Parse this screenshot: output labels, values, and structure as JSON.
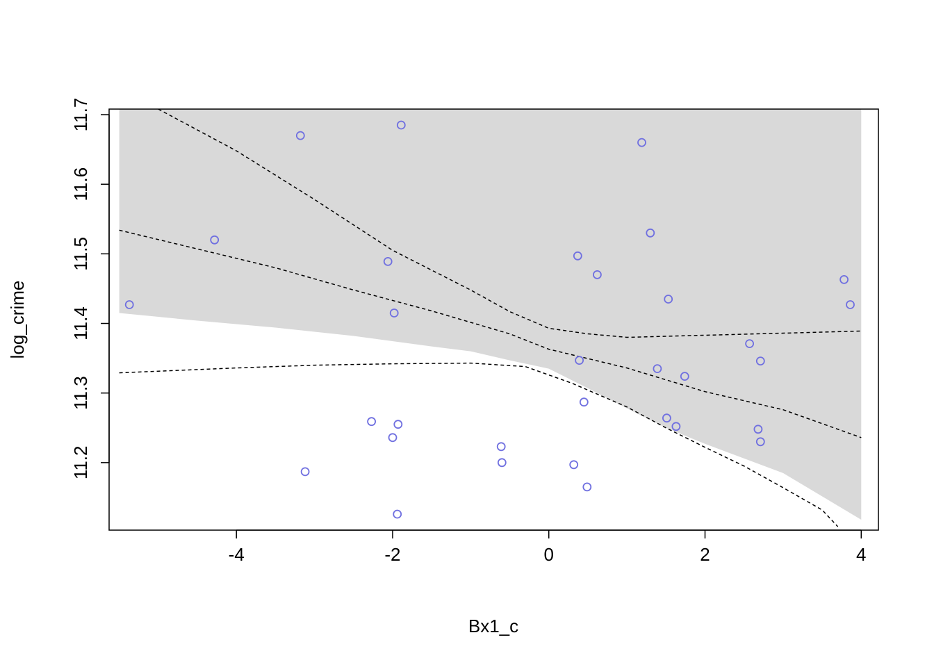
{
  "chart_data": {
    "type": "scatter",
    "title": "",
    "xlabel": "Bx1_c",
    "ylabel": "log_crime",
    "xlim": [
      -5.63,
      4.22
    ],
    "ylim": [
      11.103,
      11.708
    ],
    "x_ticks": [
      -4,
      -2,
      0,
      2,
      4
    ],
    "x_tick_labels": [
      "-4",
      "-2",
      "0",
      "2",
      "4"
    ],
    "y_ticks": [
      11.2,
      11.3,
      11.4,
      11.5,
      11.6,
      11.7
    ],
    "y_tick_labels": [
      "11.2",
      "11.3",
      "11.4",
      "11.5",
      "11.6",
      "11.7"
    ],
    "grid": false,
    "point_color": "#7070e0",
    "band_color": "#d9d9d9",
    "line_color": "#000000",
    "points": [
      {
        "x": -5.37,
        "y": 11.427
      },
      {
        "x": -4.28,
        "y": 11.52
      },
      {
        "x": -3.18,
        "y": 11.67
      },
      {
        "x": -3.12,
        "y": 11.187
      },
      {
        "x": -2.27,
        "y": 11.259
      },
      {
        "x": -2.06,
        "y": 11.489
      },
      {
        "x": -2.0,
        "y": 11.236
      },
      {
        "x": -1.98,
        "y": 11.415
      },
      {
        "x": -1.93,
        "y": 11.255
      },
      {
        "x": -1.94,
        "y": 11.126
      },
      {
        "x": -1.89,
        "y": 11.685
      },
      {
        "x": -0.61,
        "y": 11.223
      },
      {
        "x": -0.6,
        "y": 11.2
      },
      {
        "x": 0.32,
        "y": 11.197
      },
      {
        "x": 0.37,
        "y": 11.497
      },
      {
        "x": 0.39,
        "y": 11.347
      },
      {
        "x": 0.45,
        "y": 11.287
      },
      {
        "x": 0.49,
        "y": 11.165
      },
      {
        "x": 0.62,
        "y": 11.47
      },
      {
        "x": 1.19,
        "y": 11.66
      },
      {
        "x": 1.3,
        "y": 11.53
      },
      {
        "x": 1.39,
        "y": 11.335
      },
      {
        "x": 1.51,
        "y": 11.264
      },
      {
        "x": 1.53,
        "y": 11.435
      },
      {
        "x": 1.63,
        "y": 11.252
      },
      {
        "x": 1.74,
        "y": 11.324
      },
      {
        "x": 2.57,
        "y": 11.371
      },
      {
        "x": 2.68,
        "y": 11.248
      },
      {
        "x": 2.71,
        "y": 11.346
      },
      {
        "x": 2.71,
        "y": 11.23
      },
      {
        "x": 3.78,
        "y": 11.463
      },
      {
        "x": 3.86,
        "y": 11.427
      }
    ],
    "band_upper": [
      {
        "x": -5.5,
        "y": 11.708
      },
      {
        "x": 4.0,
        "y": 11.708
      }
    ],
    "band_lower": [
      {
        "x": -5.5,
        "y": 11.415
      },
      {
        "x": -4.5,
        "y": 11.404
      },
      {
        "x": -3.5,
        "y": 11.394
      },
      {
        "x": -2.5,
        "y": 11.382
      },
      {
        "x": -1.5,
        "y": 11.367
      },
      {
        "x": -1.0,
        "y": 11.36
      },
      {
        "x": -0.5,
        "y": 11.347
      },
      {
        "x": 0.0,
        "y": 11.335
      },
      {
        "x": 0.5,
        "y": 11.307
      },
      {
        "x": 1.0,
        "y": 11.278
      },
      {
        "x": 1.5,
        "y": 11.25
      },
      {
        "x": 2.0,
        "y": 11.227
      },
      {
        "x": 3.0,
        "y": 11.185
      },
      {
        "x": 4.0,
        "y": 11.118
      }
    ],
    "fit_line": [
      {
        "x": -5.5,
        "y": 11.534
      },
      {
        "x": -4.5,
        "y": 11.507
      },
      {
        "x": -3.5,
        "y": 11.48
      },
      {
        "x": -2.5,
        "y": 11.448
      },
      {
        "x": -1.5,
        "y": 11.418
      },
      {
        "x": -0.5,
        "y": 11.385
      },
      {
        "x": 0.0,
        "y": 11.363
      },
      {
        "x": 1.0,
        "y": 11.336
      },
      {
        "x": 2.0,
        "y": 11.302
      },
      {
        "x": 3.0,
        "y": 11.276
      },
      {
        "x": 4.0,
        "y": 11.236
      }
    ],
    "upper_line": [
      {
        "x": -5.0,
        "y": 11.708
      },
      {
        "x": -4.0,
        "y": 11.648
      },
      {
        "x": -3.0,
        "y": 11.578
      },
      {
        "x": -2.0,
        "y": 11.505
      },
      {
        "x": -1.0,
        "y": 11.448
      },
      {
        "x": -0.5,
        "y": 11.417
      },
      {
        "x": 0.0,
        "y": 11.393
      },
      {
        "x": 0.5,
        "y": 11.385
      },
      {
        "x": 1.0,
        "y": 11.38
      },
      {
        "x": 2.0,
        "y": 11.383
      },
      {
        "x": 3.0,
        "y": 11.386
      },
      {
        "x": 4.0,
        "y": 11.389
      }
    ],
    "lower_line": [
      {
        "x": -5.5,
        "y": 11.329
      },
      {
        "x": -4.0,
        "y": 11.336
      },
      {
        "x": -3.0,
        "y": 11.34
      },
      {
        "x": -2.0,
        "y": 11.342
      },
      {
        "x": -1.0,
        "y": 11.343
      },
      {
        "x": -0.3,
        "y": 11.338
      },
      {
        "x": 0.3,
        "y": 11.314
      },
      {
        "x": 1.0,
        "y": 11.28
      },
      {
        "x": 1.5,
        "y": 11.25
      },
      {
        "x": 2.0,
        "y": 11.222
      },
      {
        "x": 2.5,
        "y": 11.195
      },
      {
        "x": 3.0,
        "y": 11.164
      },
      {
        "x": 3.5,
        "y": 11.132
      },
      {
        "x": 3.7,
        "y": 11.108
      }
    ]
  }
}
